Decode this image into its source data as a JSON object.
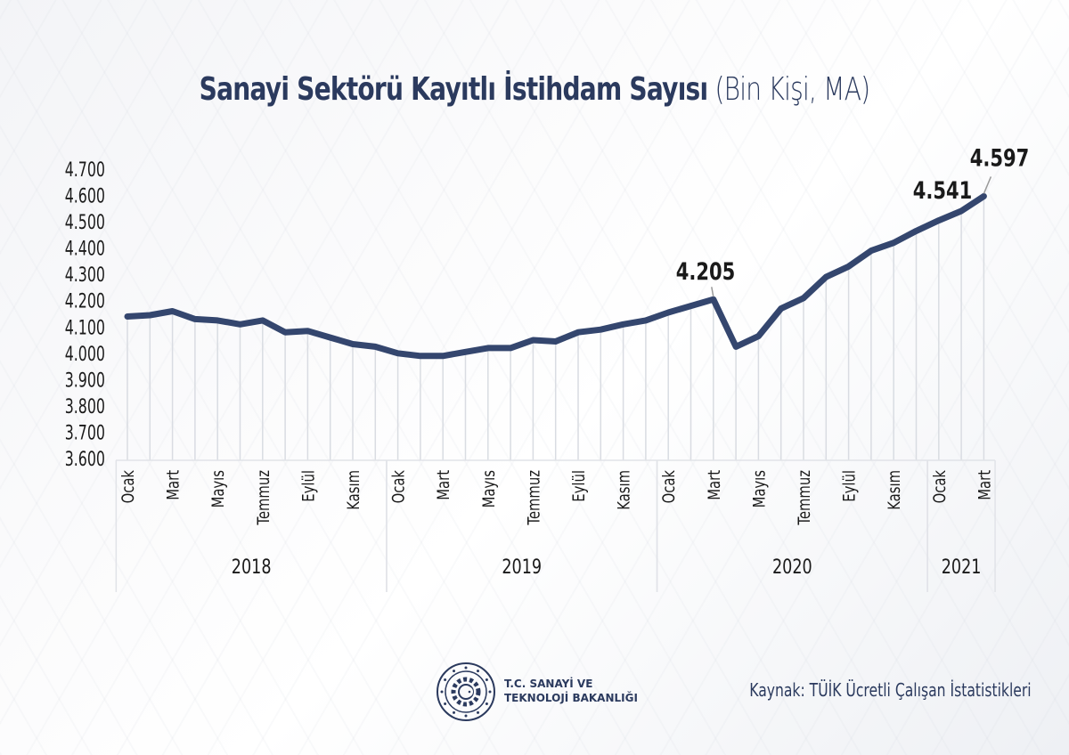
{
  "header": {
    "title_bold": "Sanayi Sektörü Kayıtlı İstihdam Sayısı",
    "title_light": "(Bin Kişi, MA)"
  },
  "footer": {
    "org_line1": "T.C. SANAYİ VE",
    "org_line2": "TEKNOLOJİ BAKANLIĞI",
    "source": "Kaynak: TÜİK Ücretli Çalışan İstatistikleri"
  },
  "colors": {
    "line": "#34466e",
    "title": "#2b3a5e",
    "grid": "#d9dce2",
    "text": "#1a1a1a"
  },
  "chart_data": {
    "type": "line",
    "title": "Sanayi Sektörü Kayıtlı İstihdam Sayısı (Bin Kişi, MA)",
    "xlabel": "",
    "ylabel": "",
    "ylim": [
      3600,
      4700
    ],
    "yticks": [
      "4.700",
      "4.600",
      "4.500",
      "4.400",
      "4.300",
      "4.200",
      "4.100",
      "4.000",
      "3.900",
      "3.800",
      "3.700",
      "3.600"
    ],
    "grid": "vertical",
    "legend": "none",
    "x": [
      "2018-01",
      "2018-02",
      "2018-03",
      "2018-04",
      "2018-05",
      "2018-06",
      "2018-07",
      "2018-08",
      "2018-09",
      "2018-10",
      "2018-11",
      "2018-12",
      "2019-01",
      "2019-02",
      "2019-03",
      "2019-04",
      "2019-05",
      "2019-06",
      "2019-07",
      "2019-08",
      "2019-09",
      "2019-10",
      "2019-11",
      "2019-12",
      "2020-01",
      "2020-02",
      "2020-03",
      "2020-04",
      "2020-05",
      "2020-06",
      "2020-07",
      "2020-08",
      "2020-09",
      "2020-10",
      "2020-11",
      "2020-12",
      "2021-01",
      "2021-02",
      "2021-03"
    ],
    "x_tick_labels": [
      {
        "index": 0,
        "label": "Ocak"
      },
      {
        "index": 2,
        "label": "Mart"
      },
      {
        "index": 4,
        "label": "Mayıs"
      },
      {
        "index": 6,
        "label": "Temmuz"
      },
      {
        "index": 8,
        "label": "Eylül"
      },
      {
        "index": 10,
        "label": "Kasım"
      },
      {
        "index": 12,
        "label": "Ocak"
      },
      {
        "index": 14,
        "label": "Mart"
      },
      {
        "index": 16,
        "label": "Mayıs"
      },
      {
        "index": 18,
        "label": "Temmuz"
      },
      {
        "index": 20,
        "label": "Eylül"
      },
      {
        "index": 22,
        "label": "Kasım"
      },
      {
        "index": 24,
        "label": "Ocak"
      },
      {
        "index": 26,
        "label": "Mart"
      },
      {
        "index": 28,
        "label": "Mayıs"
      },
      {
        "index": 30,
        "label": "Temmuz"
      },
      {
        "index": 32,
        "label": "Eylül"
      },
      {
        "index": 34,
        "label": "Kasım"
      },
      {
        "index": 36,
        "label": "Ocak"
      },
      {
        "index": 38,
        "label": "Mart"
      }
    ],
    "year_groups": [
      {
        "label": "2018",
        "start": 0,
        "end": 11
      },
      {
        "label": "2019",
        "start": 12,
        "end": 23
      },
      {
        "label": "2020",
        "start": 24,
        "end": 35
      },
      {
        "label": "2021",
        "start": 36,
        "end": 38
      }
    ],
    "series": [
      {
        "name": "Kayıtlı İstihdam (Bin Kişi)",
        "values": [
          4140,
          4145,
          4160,
          4130,
          4125,
          4110,
          4125,
          4080,
          4085,
          4060,
          4035,
          4025,
          4000,
          3990,
          3990,
          4005,
          4020,
          4020,
          4050,
          4045,
          4080,
          4090,
          4110,
          4125,
          4155,
          4180,
          4205,
          4025,
          4065,
          4170,
          4210,
          4290,
          4330,
          4390,
          4420,
          4465,
          4505,
          4541,
          4597
        ]
      }
    ],
    "annotations": [
      {
        "index": 26,
        "label": "4.205"
      },
      {
        "index": 37,
        "label": "4.541"
      },
      {
        "index": 38,
        "label": "4.597"
      }
    ]
  }
}
